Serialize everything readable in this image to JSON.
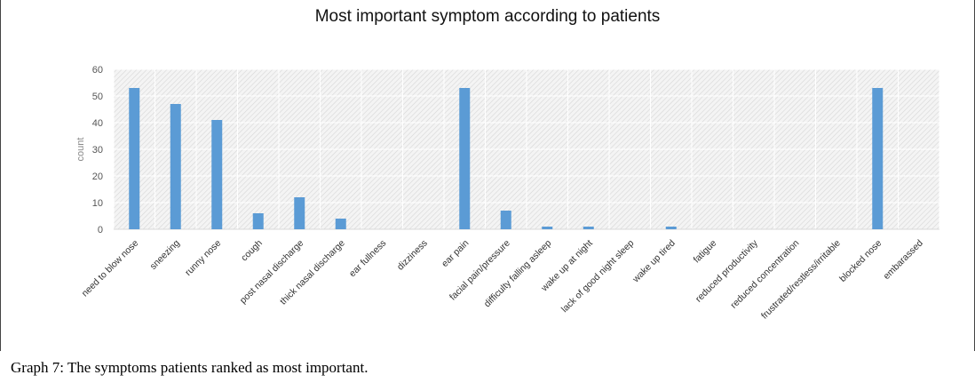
{
  "chart_data": {
    "type": "bar",
    "title": "Most important symptom according to patients",
    "xlabel": "",
    "ylabel": "count",
    "ylim": [
      0,
      60
    ],
    "yticks": [
      0,
      10,
      20,
      30,
      40,
      50,
      60
    ],
    "grid": true,
    "bar_color": "#5b9bd5",
    "categories": [
      "need to blow nose",
      "sneezing",
      "runny nose",
      "cough",
      "post nasal discharge",
      "thick nasal discharge",
      "ear fullness",
      "dizziness",
      "ear pain",
      "facial pain/pressure",
      "difficulty falling asleep",
      "wake up at night",
      "lack of good night sleep",
      "wake up tired",
      "fatigue",
      "reduced productivity",
      "reduced concentration",
      "frustrated/restless/irritable",
      "blocked nose",
      "embarassed"
    ],
    "values": [
      53,
      47,
      41,
      6,
      12,
      4,
      0,
      0,
      53,
      7,
      1,
      1,
      0,
      1,
      0,
      0,
      0,
      0,
      53,
      0
    ]
  },
  "caption": {
    "label": "Graph 7:",
    "text": " The symptoms patients ranked as most important."
  }
}
